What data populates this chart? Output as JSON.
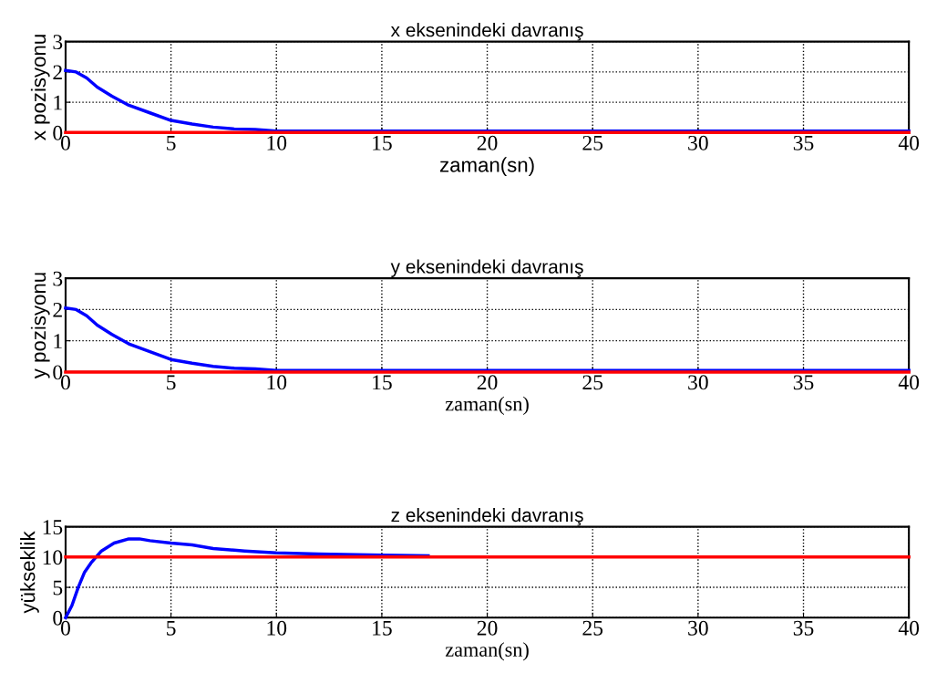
{
  "chart_data": [
    {
      "type": "line",
      "title": "x eksenindeki davranış",
      "xlabel": "zaman(sn)",
      "ylabel": "x pozisyonu",
      "xlim": [
        0,
        40
      ],
      "ylim": [
        0,
        3
      ],
      "xticks": [
        0,
        5,
        10,
        15,
        20,
        25,
        30,
        35,
        40
      ],
      "yticks": [
        0,
        1,
        2,
        3
      ],
      "grid": true,
      "line_style": "solid",
      "marker": "none",
      "series": [
        {
          "color": "#0000ff",
          "x": [
            0,
            0.5,
            1,
            1.5,
            2.2,
            3,
            4,
            5,
            6,
            7,
            8,
            9,
            10,
            15,
            20,
            25,
            30,
            35,
            40
          ],
          "values": [
            2.05,
            2.0,
            1.8,
            1.5,
            1.2,
            0.9,
            0.65,
            0.4,
            0.28,
            0.18,
            0.12,
            0.1,
            0.05,
            0.05,
            0.05,
            0.05,
            0.05,
            0.05,
            0.05
          ]
        },
        {
          "color": "#ff0000",
          "x": [
            0,
            40
          ],
          "values": [
            0,
            0
          ]
        }
      ]
    },
    {
      "type": "line",
      "title": "y eksenindeki davranış",
      "xlabel": "zaman(sn)",
      "ylabel": "y pozisyonu",
      "xlim": [
        0,
        40
      ],
      "ylim": [
        0,
        3
      ],
      "xticks": [
        0,
        5,
        10,
        15,
        20,
        25,
        30,
        35,
        40
      ],
      "yticks": [
        0,
        1,
        2,
        3
      ],
      "grid": true,
      "line_style": "solid",
      "marker": "none",
      "series": [
        {
          "color": "#0000ff",
          "x": [
            0,
            0.5,
            1,
            1.5,
            2.2,
            3,
            4,
            5,
            6,
            7,
            8,
            9,
            10,
            15,
            20,
            25,
            30,
            35,
            40
          ],
          "values": [
            2.05,
            2.0,
            1.8,
            1.5,
            1.2,
            0.9,
            0.65,
            0.4,
            0.28,
            0.18,
            0.12,
            0.1,
            0.05,
            0.05,
            0.05,
            0.05,
            0.05,
            0.05,
            0.05
          ]
        },
        {
          "color": "#ff0000",
          "x": [
            0,
            40
          ],
          "values": [
            0,
            0
          ]
        }
      ]
    },
    {
      "type": "line",
      "title": "z eksenindeki davranış",
      "xlabel": "zaman(sn)",
      "ylabel": "yükseklik",
      "xlim": [
        0,
        40
      ],
      "ylim": [
        0,
        15
      ],
      "xticks": [
        0,
        5,
        10,
        15,
        20,
        25,
        30,
        35,
        40
      ],
      "yticks": [
        0,
        5,
        10,
        15
      ],
      "grid": true,
      "line_style": "solid",
      "marker": "none",
      "series": [
        {
          "color": "#0000ff",
          "x": [
            0,
            0.3,
            0.6,
            0.9,
            1.2,
            1.7,
            2.3,
            3,
            3.5,
            4,
            5,
            6,
            7,
            8.5,
            10,
            12,
            15,
            17.2
          ],
          "values": [
            0,
            2,
            5,
            7.5,
            9,
            11,
            12.3,
            13,
            13,
            12.7,
            12.3,
            12,
            11.4,
            11,
            10.7,
            10.5,
            10.3,
            10.2
          ]
        },
        {
          "color": "#ff0000",
          "x": [
            0,
            40
          ],
          "values": [
            10,
            10
          ]
        }
      ]
    }
  ]
}
